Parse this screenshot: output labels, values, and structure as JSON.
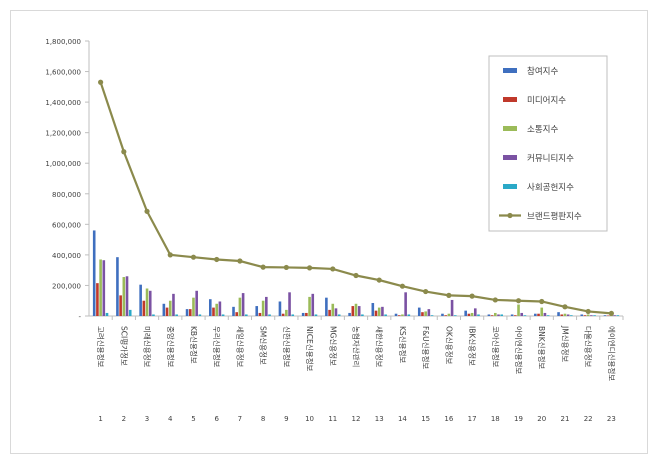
{
  "chart_data": {
    "type": "bar",
    "ylim": [
      0,
      1800000
    ],
    "yticks": [
      "-",
      "200,000",
      "400,000",
      "600,000",
      "800,000",
      "1,000,000",
      "1,200,000",
      "1,400,000",
      "1,600,000",
      "1,800,000"
    ],
    "grid": false,
    "legend_position": "top-right",
    "categories": [
      "고려신용정보",
      "SCI평가정보",
      "미래신용정보",
      "중앙신용정보",
      "KB신용정보",
      "우리신용정보",
      "세일신용정보",
      "SM신용정보",
      "신한신용정보",
      "NICE신용정보",
      "MG신용정보",
      "농협자산관리",
      "새한신용정보",
      "KS신용정보",
      "F&U신용정보",
      "OK신용정보",
      "IBK신용정보",
      "코아신용정보",
      "아이엔신용정보",
      "BNK신용정보",
      "JM신용정보",
      "다올신용정보",
      "에이엔디신용정보"
    ],
    "ranks": [
      "1",
      "2",
      "3",
      "4",
      "5",
      "6",
      "7",
      "8",
      "9",
      "10",
      "11",
      "12",
      "13",
      "14",
      "15",
      "16",
      "17",
      "18",
      "19",
      "20",
      "21",
      "22",
      "23"
    ],
    "series": [
      {
        "name": "참여지수",
        "color": "#3f6fbf",
        "values": [
          560000,
          385000,
          205000,
          80000,
          45000,
          110000,
          60000,
          65000,
          95000,
          20000,
          120000,
          20000,
          85000,
          15000,
          55000,
          15000,
          35000,
          10000,
          10000,
          15000,
          25000,
          10000,
          5000
        ]
      },
      {
        "name": "미디어지수",
        "color": "#c0392b",
        "values": [
          215000,
          135000,
          100000,
          55000,
          45000,
          55000,
          25000,
          20000,
          15000,
          20000,
          40000,
          65000,
          35000,
          5000,
          25000,
          5000,
          15000,
          5000,
          5000,
          15000,
          10000,
          5000,
          3000
        ]
      },
      {
        "name": "소통지수",
        "color": "#9bbb59",
        "values": [
          370000,
          255000,
          180000,
          100000,
          120000,
          80000,
          120000,
          100000,
          40000,
          125000,
          80000,
          80000,
          55000,
          10000,
          30000,
          15000,
          20000,
          20000,
          75000,
          55000,
          15000,
          10000,
          5000
        ]
      },
      {
        "name": "커뮤니티지수",
        "color": "#7b52a3",
        "values": [
          365000,
          260000,
          165000,
          145000,
          165000,
          95000,
          150000,
          125000,
          155000,
          145000,
          50000,
          65000,
          60000,
          155000,
          45000,
          105000,
          50000,
          10000,
          20000,
          20000,
          10000,
          5000,
          5000
        ]
      },
      {
        "name": "사회공헌지수",
        "color": "#2aa9c7",
        "values": [
          20000,
          40000,
          10000,
          10000,
          10000,
          10000,
          10000,
          10000,
          10000,
          10000,
          10000,
          10000,
          10000,
          10000,
          5000,
          5000,
          10000,
          10000,
          5000,
          5000,
          5000,
          5000,
          5000
        ]
      }
    ],
    "line_series": {
      "name": "브랜드평판지수",
      "color": "#8b8a4c",
      "values": [
        1530000,
        1075000,
        685000,
        400000,
        385000,
        370000,
        360000,
        320000,
        318000,
        315000,
        308000,
        265000,
        235000,
        195000,
        160000,
        135000,
        130000,
        105000,
        100000,
        95000,
        60000,
        30000,
        17000
      ]
    }
  }
}
